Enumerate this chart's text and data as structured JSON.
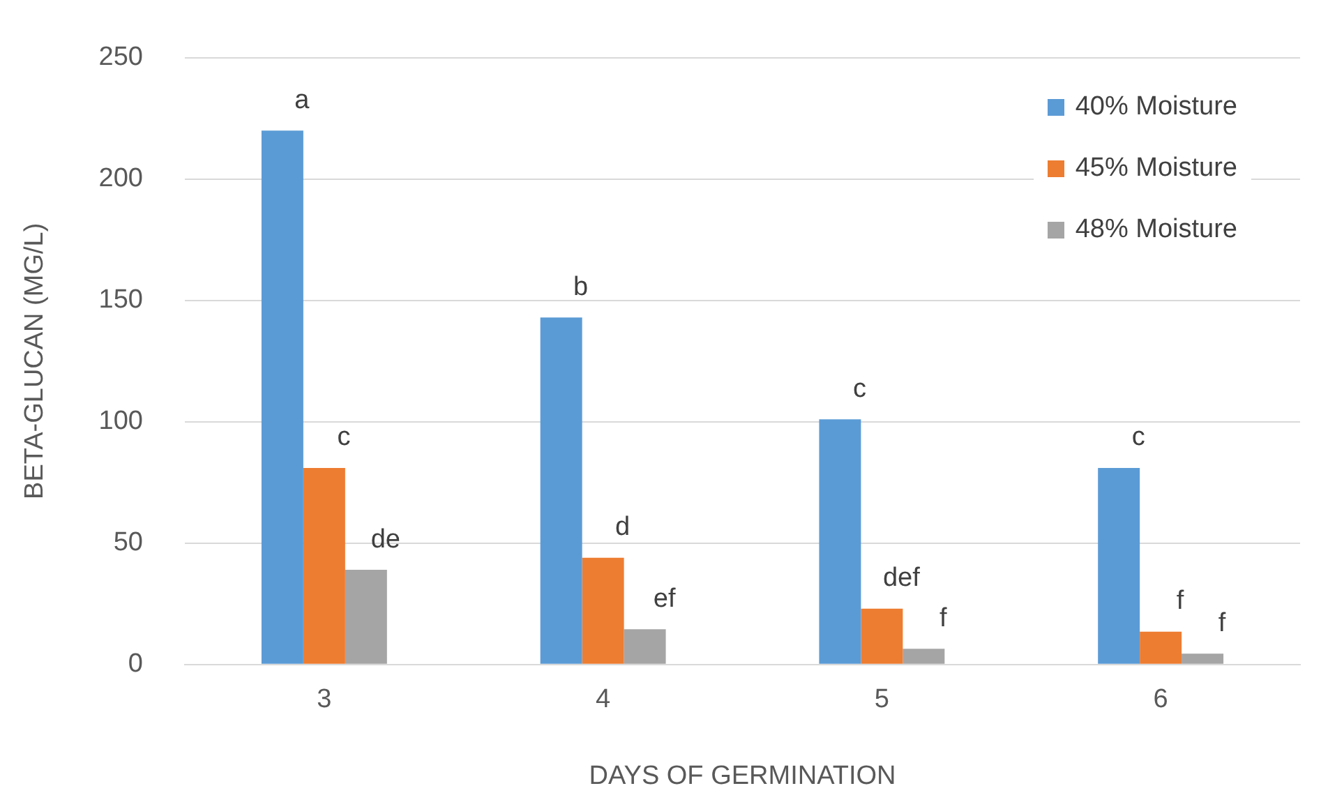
{
  "chart_data": {
    "type": "bar",
    "xlabel": "DAYS OF GERMINATION",
    "ylabel": "BETA-GLUCAN (MG/L)",
    "categories": [
      "3",
      "4",
      "5",
      "6"
    ],
    "series": [
      {
        "name": "40% Moisture",
        "color": "#5b9bd5",
        "values": [
          220,
          143,
          101,
          81
        ],
        "value_labels": [
          "a",
          "b",
          "c",
          "c"
        ]
      },
      {
        "name": "45% Moisture",
        "color": "#ed7d31",
        "values": [
          81,
          44,
          23,
          13.5
        ],
        "value_labels": [
          "c",
          "d",
          "def",
          "f"
        ]
      },
      {
        "name": "48% Moisture",
        "color": "#a5a5a5",
        "values": [
          39,
          14.5,
          6.5,
          4.5
        ],
        "value_labels": [
          "de",
          "ef",
          "f",
          "f"
        ]
      }
    ],
    "ylim": [
      0,
      250
    ],
    "yticks": [
      0,
      50,
      100,
      150,
      200,
      250
    ],
    "grid": "y",
    "legend": "top right"
  }
}
